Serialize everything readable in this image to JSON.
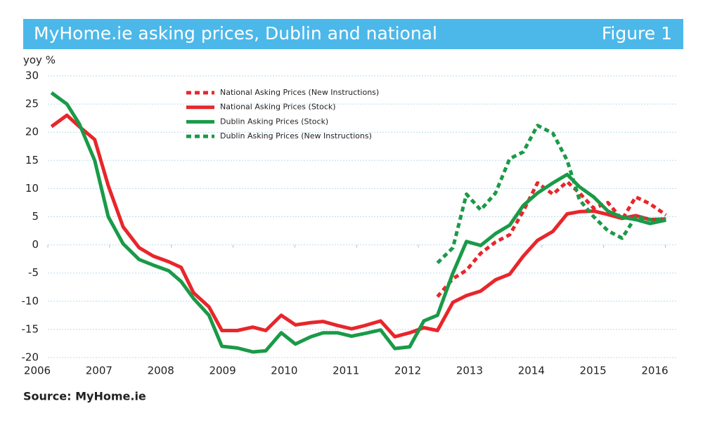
{
  "header": {
    "title": "MyHome.ie asking prices, Dublin and national",
    "figure": "Figure 1"
  },
  "chart_data": {
    "type": "line",
    "ylabel": "yoy %",
    "xlim": [
      2006,
      2016.37
    ],
    "xticks": [
      2006,
      2007,
      2008,
      2009,
      2010,
      2011,
      2012,
      2013,
      2014,
      2015,
      2016
    ],
    "ylim": [
      -20,
      30
    ],
    "yticks": [
      -20,
      -15,
      -10,
      -5,
      0,
      5,
      10,
      15,
      20,
      25,
      30
    ],
    "grid": true,
    "series": [
      {
        "name": "National Asking Prices (New Instructions)",
        "color": "#e8262b",
        "dashed": true,
        "x": [
          2012.48,
          2012.73,
          2012.95,
          2013.18,
          2013.42,
          2013.65,
          2013.87,
          2014.1,
          2014.35,
          2014.58,
          2014.78,
          2015.01,
          2015.24,
          2015.47,
          2015.69,
          2015.92,
          2016.18
        ],
        "values": [
          -9.2,
          -6,
          -4.5,
          -1.5,
          0.5,
          1.8,
          6,
          11,
          9,
          11.2,
          9.2,
          6.5,
          7.5,
          4.5,
          8.5,
          7.3,
          5.3
        ]
      },
      {
        "name": "National Asking Prices (Stock)",
        "color": "#e8262b",
        "dashed": false,
        "x": [
          2006.23,
          2006.48,
          2006.68,
          2006.93,
          2007.15,
          2007.39,
          2007.65,
          2007.88,
          2008.13,
          2008.33,
          2008.53,
          2008.78,
          2008.99,
          2009.24,
          2009.49,
          2009.7,
          2009.95,
          2010.18,
          2010.43,
          2010.63,
          2010.86,
          2011.09,
          2011.31,
          2011.56,
          2011.79,
          2012.03,
          2012.26,
          2012.48,
          2012.73,
          2012.95,
          2013.18,
          2013.42,
          2013.65,
          2013.87,
          2014.1,
          2014.35,
          2014.58,
          2014.78,
          2015.01,
          2015.24,
          2015.47,
          2015.69,
          2015.92,
          2016.18
        ],
        "values": [
          21,
          23,
          21,
          18.7,
          10.5,
          3.2,
          -0.5,
          -2,
          -3,
          -4,
          -8.5,
          -11,
          -15.2,
          -15.2,
          -14.6,
          -15.2,
          -12.5,
          -14.2,
          -13.8,
          -13.6,
          -14.3,
          -14.9,
          -14.3,
          -13.5,
          -16.3,
          -15.6,
          -14.7,
          -15.2,
          -10.2,
          -9,
          -8.2,
          -6.2,
          -5.2,
          -2,
          0.8,
          2.4,
          5.5,
          5.9,
          6,
          5.4,
          4.7,
          5.2,
          4.5,
          4.6
        ]
      },
      {
        "name": "Dublin Asking Prices (Stock)",
        "color": "#1a9a48",
        "dashed": false,
        "x": [
          2006.23,
          2006.48,
          2006.68,
          2006.93,
          2007.15,
          2007.39,
          2007.65,
          2007.88,
          2008.13,
          2008.33,
          2008.53,
          2008.78,
          2008.99,
          2009.24,
          2009.49,
          2009.7,
          2009.95,
          2010.18,
          2010.43,
          2010.63,
          2010.86,
          2011.09,
          2011.31,
          2011.56,
          2011.79,
          2012.03,
          2012.26,
          2012.48,
          2012.73,
          2012.95,
          2013.18,
          2013.42,
          2013.65,
          2013.87,
          2014.1,
          2014.35,
          2014.58,
          2014.78,
          2015.01,
          2015.24,
          2015.47,
          2015.69,
          2015.92,
          2016.18
        ],
        "values": [
          27,
          25,
          21.5,
          15,
          5,
          0.2,
          -2.6,
          -3.6,
          -4.6,
          -6.5,
          -9.5,
          -12.5,
          -18,
          -18.3,
          -19,
          -18.8,
          -15.6,
          -17.6,
          -16.3,
          -15.6,
          -15.6,
          -16.2,
          -15.7,
          -15.1,
          -18.4,
          -18.1,
          -13.5,
          -12.5,
          -5,
          0.6,
          -0.1,
          2,
          3.5,
          7,
          9.2,
          11,
          12.5,
          10.3,
          8.5,
          6,
          4.9,
          4.5,
          3.8,
          4.4
        ]
      },
      {
        "name": "Dublin Asking Prices (New Instructions)",
        "color": "#1a9a48",
        "dashed": true,
        "x": [
          2012.48,
          2012.73,
          2012.95,
          2013.18,
          2013.42,
          2013.65,
          2013.87,
          2014.1,
          2014.35,
          2014.58,
          2014.78,
          2015.01,
          2015.24,
          2015.47,
          2015.69,
          2015.92,
          2016.18
        ],
        "values": [
          -3.2,
          -0.5,
          9,
          6.2,
          9.2,
          15.3,
          16.5,
          21.2,
          19.8,
          15,
          8,
          5,
          2.5,
          1.2,
          5,
          4.5,
          4.5
        ]
      }
    ]
  },
  "source": "Source: MyHome.ie"
}
